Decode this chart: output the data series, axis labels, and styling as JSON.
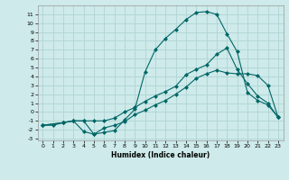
{
  "xlabel": "Humidex (Indice chaleur)",
  "background_color": "#ceeaea",
  "grid_color": "#b0d4d4",
  "line_color": "#006666",
  "xlim": [
    -0.5,
    23.5
  ],
  "ylim": [
    -3.2,
    12.0
  ],
  "xticks": [
    0,
    1,
    2,
    3,
    4,
    5,
    6,
    7,
    8,
    9,
    10,
    11,
    12,
    13,
    14,
    15,
    16,
    17,
    18,
    19,
    20,
    21,
    22,
    23
  ],
  "yticks": [
    -3,
    -2,
    -1,
    0,
    1,
    2,
    3,
    4,
    5,
    6,
    7,
    8,
    9,
    10,
    11
  ],
  "line1_x": [
    0,
    1,
    2,
    3,
    4,
    5,
    6,
    7,
    8,
    9,
    10,
    11,
    12,
    13,
    14,
    15,
    16,
    17,
    18,
    19,
    20,
    21,
    22,
    23
  ],
  "line1_y": [
    -1.5,
    -1.5,
    -1.2,
    -1.0,
    -2.2,
    -2.5,
    -1.8,
    -1.5,
    -1.1,
    -0.3,
    0.2,
    0.8,
    1.3,
    2.0,
    2.8,
    3.8,
    4.3,
    4.7,
    4.4,
    4.3,
    4.3,
    4.1,
    3.0,
    -0.6
  ],
  "line2_x": [
    0,
    2,
    3,
    4,
    5,
    6,
    7,
    8,
    9,
    10,
    11,
    12,
    13,
    14,
    15,
    16,
    17,
    18,
    19,
    20,
    21,
    22,
    23
  ],
  "line2_y": [
    -1.5,
    -1.2,
    -1.0,
    -1.0,
    -1.0,
    -1.0,
    -0.7,
    0.0,
    0.5,
    1.2,
    1.8,
    2.3,
    2.9,
    4.2,
    4.8,
    5.3,
    6.5,
    7.2,
    4.8,
    3.2,
    1.8,
    1.0,
    -0.6
  ],
  "line3_x": [
    0,
    2,
    3,
    4,
    5,
    6,
    7,
    8,
    9,
    10,
    11,
    12,
    13,
    14,
    15,
    16,
    17,
    18,
    19,
    20,
    21,
    22,
    23
  ],
  "line3_y": [
    -1.5,
    -1.2,
    -1.0,
    -1.0,
    -2.5,
    -2.3,
    -2.1,
    -0.9,
    0.3,
    4.5,
    7.0,
    8.3,
    9.3,
    10.4,
    11.2,
    11.3,
    11.0,
    8.8,
    6.8,
    2.2,
    1.3,
    0.8,
    -0.6
  ]
}
